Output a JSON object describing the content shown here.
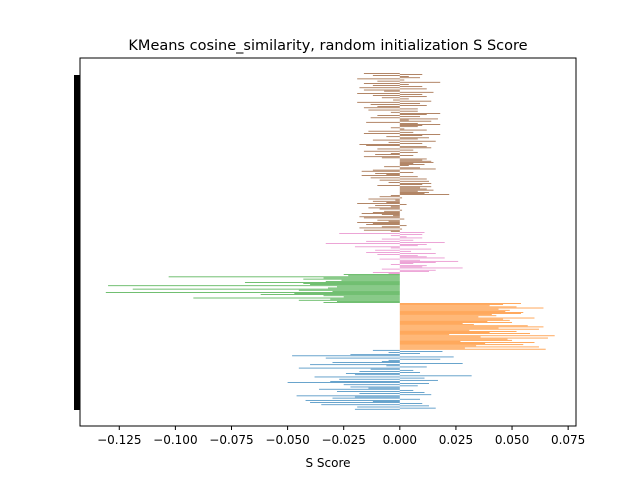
{
  "chart_data": {
    "type": "bar",
    "orientation": "horizontal",
    "title": "KMeans cosine_similarity, random initialization S Score",
    "xlabel": "S Score",
    "ylabel": "",
    "xlim": [
      -0.1425,
      0.0785
    ],
    "xticks": [
      -0.125,
      -0.1,
      -0.075,
      -0.05,
      -0.025,
      0.0,
      0.025,
      0.05,
      0.075
    ],
    "xtick_labels": [
      "−0.125",
      "−0.100",
      "−0.075",
      "−0.050",
      "−0.025",
      "0.000",
      "0.025",
      "0.050",
      "0.075"
    ],
    "grid": false,
    "legend": "none",
    "series": [
      {
        "color": "#1f77b4",
        "values": [
          -0.02,
          0.016,
          -0.019,
          0.013,
          -0.035,
          0.01,
          -0.04,
          -0.012,
          -0.042,
          0.009,
          -0.03,
          -0.02,
          -0.046,
          0.014,
          -0.018,
          0.011,
          -0.028,
          0.006,
          -0.036,
          -0.014,
          -0.022,
          0.008,
          -0.025,
          0.013,
          -0.05,
          -0.031,
          0.017,
          -0.027,
          0.011,
          -0.038,
          0.032,
          -0.02,
          -0.024,
          0.009,
          -0.018,
          0.006,
          -0.013,
          -0.045,
          0.012,
          -0.006,
          -0.04,
          0.028,
          -0.03,
          -0.008,
          -0.005,
          0.018,
          -0.033,
          0.024,
          -0.048,
          -0.022,
          0.009,
          -0.005,
          0.019,
          -0.012
        ]
      },
      {
        "color": "#ff7f0e",
        "values": [
          0.065,
          0.029,
          0.062,
          0.034,
          0.055,
          0.038,
          0.06,
          0.027,
          0.05,
          0.048,
          0.066,
          0.036,
          0.069,
          0.022,
          0.058,
          0.04,
          0.052,
          0.031,
          0.062,
          0.044,
          0.064,
          0.057,
          0.033,
          0.028,
          0.05,
          0.039,
          0.049,
          0.046,
          0.06,
          0.035,
          0.043,
          0.041,
          0.054,
          0.055,
          0.047,
          0.049,
          0.044,
          0.064,
          0.052,
          0.04,
          0.046,
          0.054
        ]
      },
      {
        "color": "#2ca02c",
        "values": [
          -0.034,
          -0.028,
          -0.045,
          -0.031,
          -0.092,
          -0.025,
          -0.034,
          -0.062,
          -0.047,
          -0.131,
          -0.03,
          -0.045,
          -0.119,
          -0.032,
          -0.028,
          -0.13,
          -0.04,
          -0.043,
          -0.069,
          -0.033,
          -0.026,
          -0.043,
          -0.034,
          -0.103,
          -0.023,
          -0.025
        ]
      },
      {
        "color": "#e377c2",
        "values": [
          -0.005,
          -0.012,
          0.013,
          0.016,
          -0.008,
          0.028,
          0.01,
          0.012,
          -0.004,
          0.006,
          0.016,
          0.026,
          0.009,
          -0.009,
          0.02,
          0.012,
          0.008,
          -0.01,
          0.016,
          -0.015,
          0.005,
          -0.011,
          0.014,
          -0.004,
          -0.02,
          0.008,
          0.012,
          -0.033,
          0.02,
          -0.015,
          0.006,
          -0.008,
          0.01,
          0.003,
          -0.004,
          0.01,
          -0.027,
          0.011
        ]
      },
      {
        "color": "#8c4a1c",
        "values": [
          -0.004,
          -0.016,
          0.001,
          -0.018,
          -0.008,
          0.003,
          -0.015,
          -0.012,
          -0.019,
          -0.005,
          -0.01,
          0.002,
          -0.016,
          -0.018,
          -0.003,
          -0.008,
          -0.017,
          -0.012,
          -0.007,
          0.001,
          -0.009,
          -0.014,
          -0.004,
          -0.011,
          0.003,
          -0.019,
          -0.006,
          -0.012,
          -0.002,
          -0.014,
          0.001,
          -0.009,
          -0.004,
          0.022,
          0.011,
          0.013,
          0.008,
          0.015,
          0.012,
          0.009,
          0.014,
          -0.01,
          0.01,
          0.014,
          -0.005,
          0.013,
          -0.009,
          0.012,
          -0.013,
          0.008,
          -0.017,
          -0.006,
          -0.011,
          0.006,
          -0.017,
          -0.012,
          0.016,
          0.009,
          -0.007,
          0.004,
          0.011,
          0.006,
          0.015,
          0.014,
          0.01,
          0.012,
          -0.008,
          -0.016,
          0.006,
          -0.011,
          -0.004,
          0.008,
          -0.016,
          0.006,
          -0.01,
          0.014,
          0.012,
          -0.015,
          -0.018,
          0.01,
          -0.005,
          0.016,
          -0.012,
          0.008,
          0.013,
          -0.006,
          0.01,
          0.018,
          -0.016,
          0.006,
          -0.014,
          0.012,
          0.002,
          -0.004,
          0.008,
          0.01,
          0.018,
          0.008,
          -0.015,
          0.014,
          0.004,
          0.017,
          -0.013,
          0.009,
          -0.01,
          0.012,
          0.018,
          -0.004,
          0.008,
          -0.014,
          0.008,
          -0.016,
          -0.01,
          0.012,
          -0.013,
          0.009,
          -0.019,
          0.014,
          -0.003,
          0.004,
          -0.008,
          0.012,
          -0.012,
          0.01,
          -0.019,
          0.015,
          -0.007,
          -0.016,
          0.012,
          -0.018,
          0.01,
          -0.012,
          0.004,
          -0.016,
          0.018,
          -0.01,
          0.002,
          -0.019,
          0.009,
          0.004,
          -0.012,
          0.01,
          -0.016
        ]
      }
    ]
  }
}
